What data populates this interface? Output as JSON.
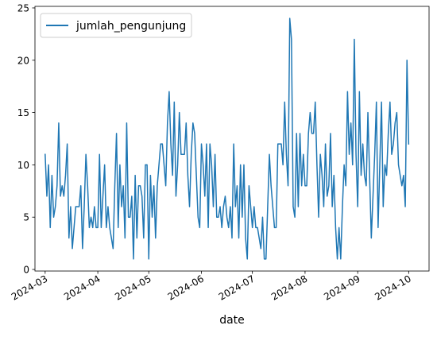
{
  "chart_data": {
    "type": "line",
    "xlabel": "date",
    "ylabel": "",
    "ylim": [
      -0.15,
      25.15
    ],
    "xlim": [
      "2024-02-24",
      "2024-10-13"
    ],
    "grid": false,
    "legend_position": "top-left",
    "y_ticks": [
      0,
      5,
      10,
      15,
      20,
      25
    ],
    "x_ticks": [
      {
        "date": "2024-03-01",
        "label": "2024-03"
      },
      {
        "date": "2024-04-01",
        "label": "2024-04"
      },
      {
        "date": "2024-05-01",
        "label": "2024-05"
      },
      {
        "date": "2024-06-01",
        "label": "2024-06"
      },
      {
        "date": "2024-07-01",
        "label": "2024-07"
      },
      {
        "date": "2024-08-01",
        "label": "2024-08"
      },
      {
        "date": "2024-09-01",
        "label": "2024-09"
      },
      {
        "date": "2024-10-01",
        "label": "2024-10"
      }
    ],
    "series": [
      {
        "name": "jumlah_pengunjung",
        "color": "#1f77b4",
        "start_date": "2024-03-01",
        "values": [
          11,
          7,
          10,
          4,
          9,
          5,
          6,
          8,
          14,
          7,
          8,
          7,
          9,
          12,
          3,
          6,
          2,
          4,
          6,
          6,
          6,
          8,
          2,
          6,
          11,
          8,
          4,
          5,
          4,
          6,
          4,
          4,
          11,
          4,
          7,
          10,
          4,
          6,
          4,
          3,
          2,
          8,
          13,
          4,
          10,
          6,
          8,
          3,
          14,
          5,
          5,
          7,
          1,
          9,
          3,
          8,
          8,
          7,
          3,
          10,
          10,
          1,
          9,
          5,
          8,
          3,
          8,
          10,
          12,
          12,
          10,
          8,
          14,
          17,
          12,
          9,
          16,
          7,
          10,
          15,
          11,
          11,
          11,
          14,
          9,
          6,
          11,
          14,
          13,
          9,
          5,
          4,
          12,
          10,
          7,
          12,
          4,
          12,
          10,
          6,
          11,
          5,
          5,
          6,
          4,
          6,
          7,
          5,
          4,
          6,
          3,
          12,
          6,
          8,
          3,
          10,
          5,
          10,
          3,
          1,
          8,
          6,
          4,
          6,
          4,
          4,
          3,
          2,
          5,
          1,
          1,
          6,
          11,
          8,
          6,
          4,
          4,
          12,
          12,
          12,
          10,
          16,
          11,
          8,
          24,
          22,
          6,
          5,
          13,
          6,
          13,
          8,
          11,
          8,
          8,
          13,
          15,
          13,
          13,
          16,
          10,
          5,
          11,
          9,
          6,
          12,
          7,
          8,
          13,
          6,
          9,
          4,
          1,
          4,
          1,
          6,
          10,
          8,
          17,
          11,
          14,
          10,
          22,
          11,
          6,
          17,
          9,
          12,
          9,
          8,
          15,
          9,
          3,
          7,
          11,
          16,
          4,
          10,
          16,
          6,
          10,
          9,
          13,
          16,
          11,
          12,
          14,
          15,
          10,
          9,
          8,
          9,
          6,
          20,
          12
        ]
      }
    ]
  }
}
